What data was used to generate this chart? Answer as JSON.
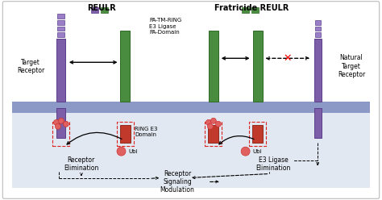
{
  "purple": "#7b5ea7",
  "purple_seg": "#9b7ec8",
  "green": "#4a8c3f",
  "red": "#c0392b",
  "ubi_color": "#e06060",
  "mem_color": "#7080b8",
  "cell_bg": "#c0cce0",
  "outer_bg": "#f0f0f0",
  "title_reulr": "REULR",
  "title_fratricide": "Fratricide REULR",
  "lbl_pa_tm_ring": "PA-TM-RING",
  "lbl_e3_ligase": "E3 Ligase",
  "lbl_pa_domain": "PA-Domain",
  "lbl_ring_e3": "RING E3",
  "lbl_domain": "Domain",
  "lbl_target": "Target\nReceptor",
  "lbl_natural": "Natural\nTarget\nReceptor",
  "lbl_rec_elim": "Receptor\nElimination",
  "lbl_e3_elim": "E3 Ligase\nElimination",
  "lbl_rec_sig": "Receptor\nSignaling\nModulation",
  "lbl_ubi": "Ubi"
}
